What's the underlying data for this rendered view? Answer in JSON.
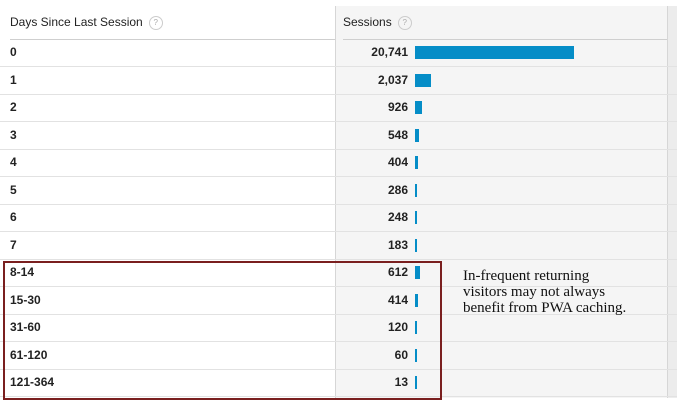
{
  "table": {
    "headers": [
      "Days Since Last Session",
      "Sessions"
    ],
    "help_icon": "?",
    "rows": [
      "0",
      "1",
      "2",
      "3",
      "4",
      "5",
      "6",
      "7",
      "8-14",
      "15-30",
      "31-60",
      "61-120",
      "121-364"
    ],
    "sessions": {
      "values": [
        20741,
        2037,
        926,
        548,
        404,
        286,
        248,
        183,
        612,
        414,
        120,
        60,
        13
      ],
      "value_labels": [
        "20,741",
        "2,037",
        "926",
        "548",
        "404",
        "286",
        "248",
        "183",
        "612",
        "414",
        "120",
        "60",
        "13"
      ],
      "color": "#058dc7"
    }
  },
  "annotation": {
    "lines": [
      "In-frequent returning",
      "visitors may not always",
      "benefit from PWA caching."
    ]
  }
}
